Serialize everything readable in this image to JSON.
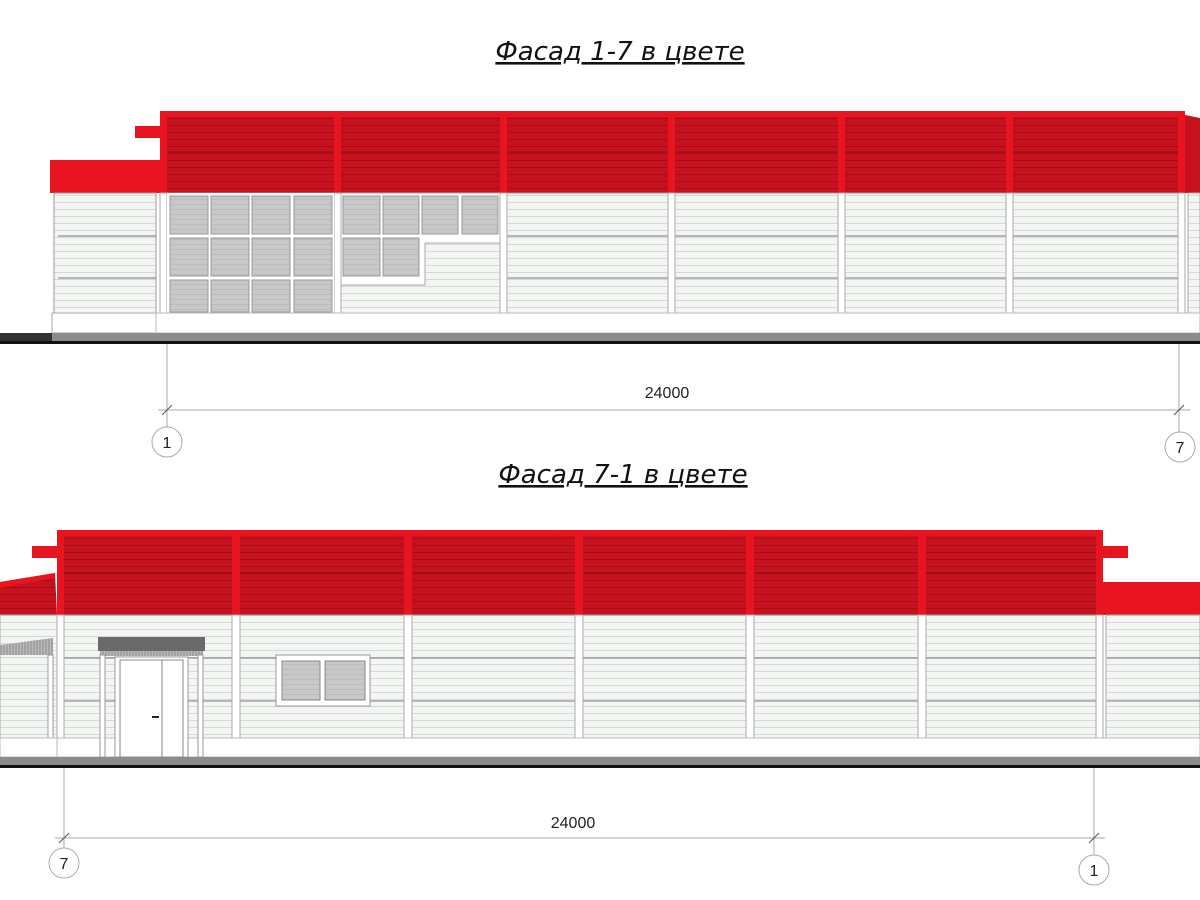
{
  "facade_top": {
    "title": "Фасад 1-7 в цвете",
    "dimension": "24000",
    "axis_left": "1",
    "axis_right": "7"
  },
  "facade_bottom": {
    "title": "Фасад 7-1 в цвете",
    "dimension": "24000",
    "axis_left": "7",
    "axis_right": "1"
  },
  "colors": {
    "roof_panel": "#c6111f",
    "roof_trim": "#e8141f",
    "wall_siding": "#f2f4f2",
    "glazing": "#c8c8c8",
    "plinth_band": "#8a8c8e",
    "door_canopy": "#6a6a6a"
  }
}
